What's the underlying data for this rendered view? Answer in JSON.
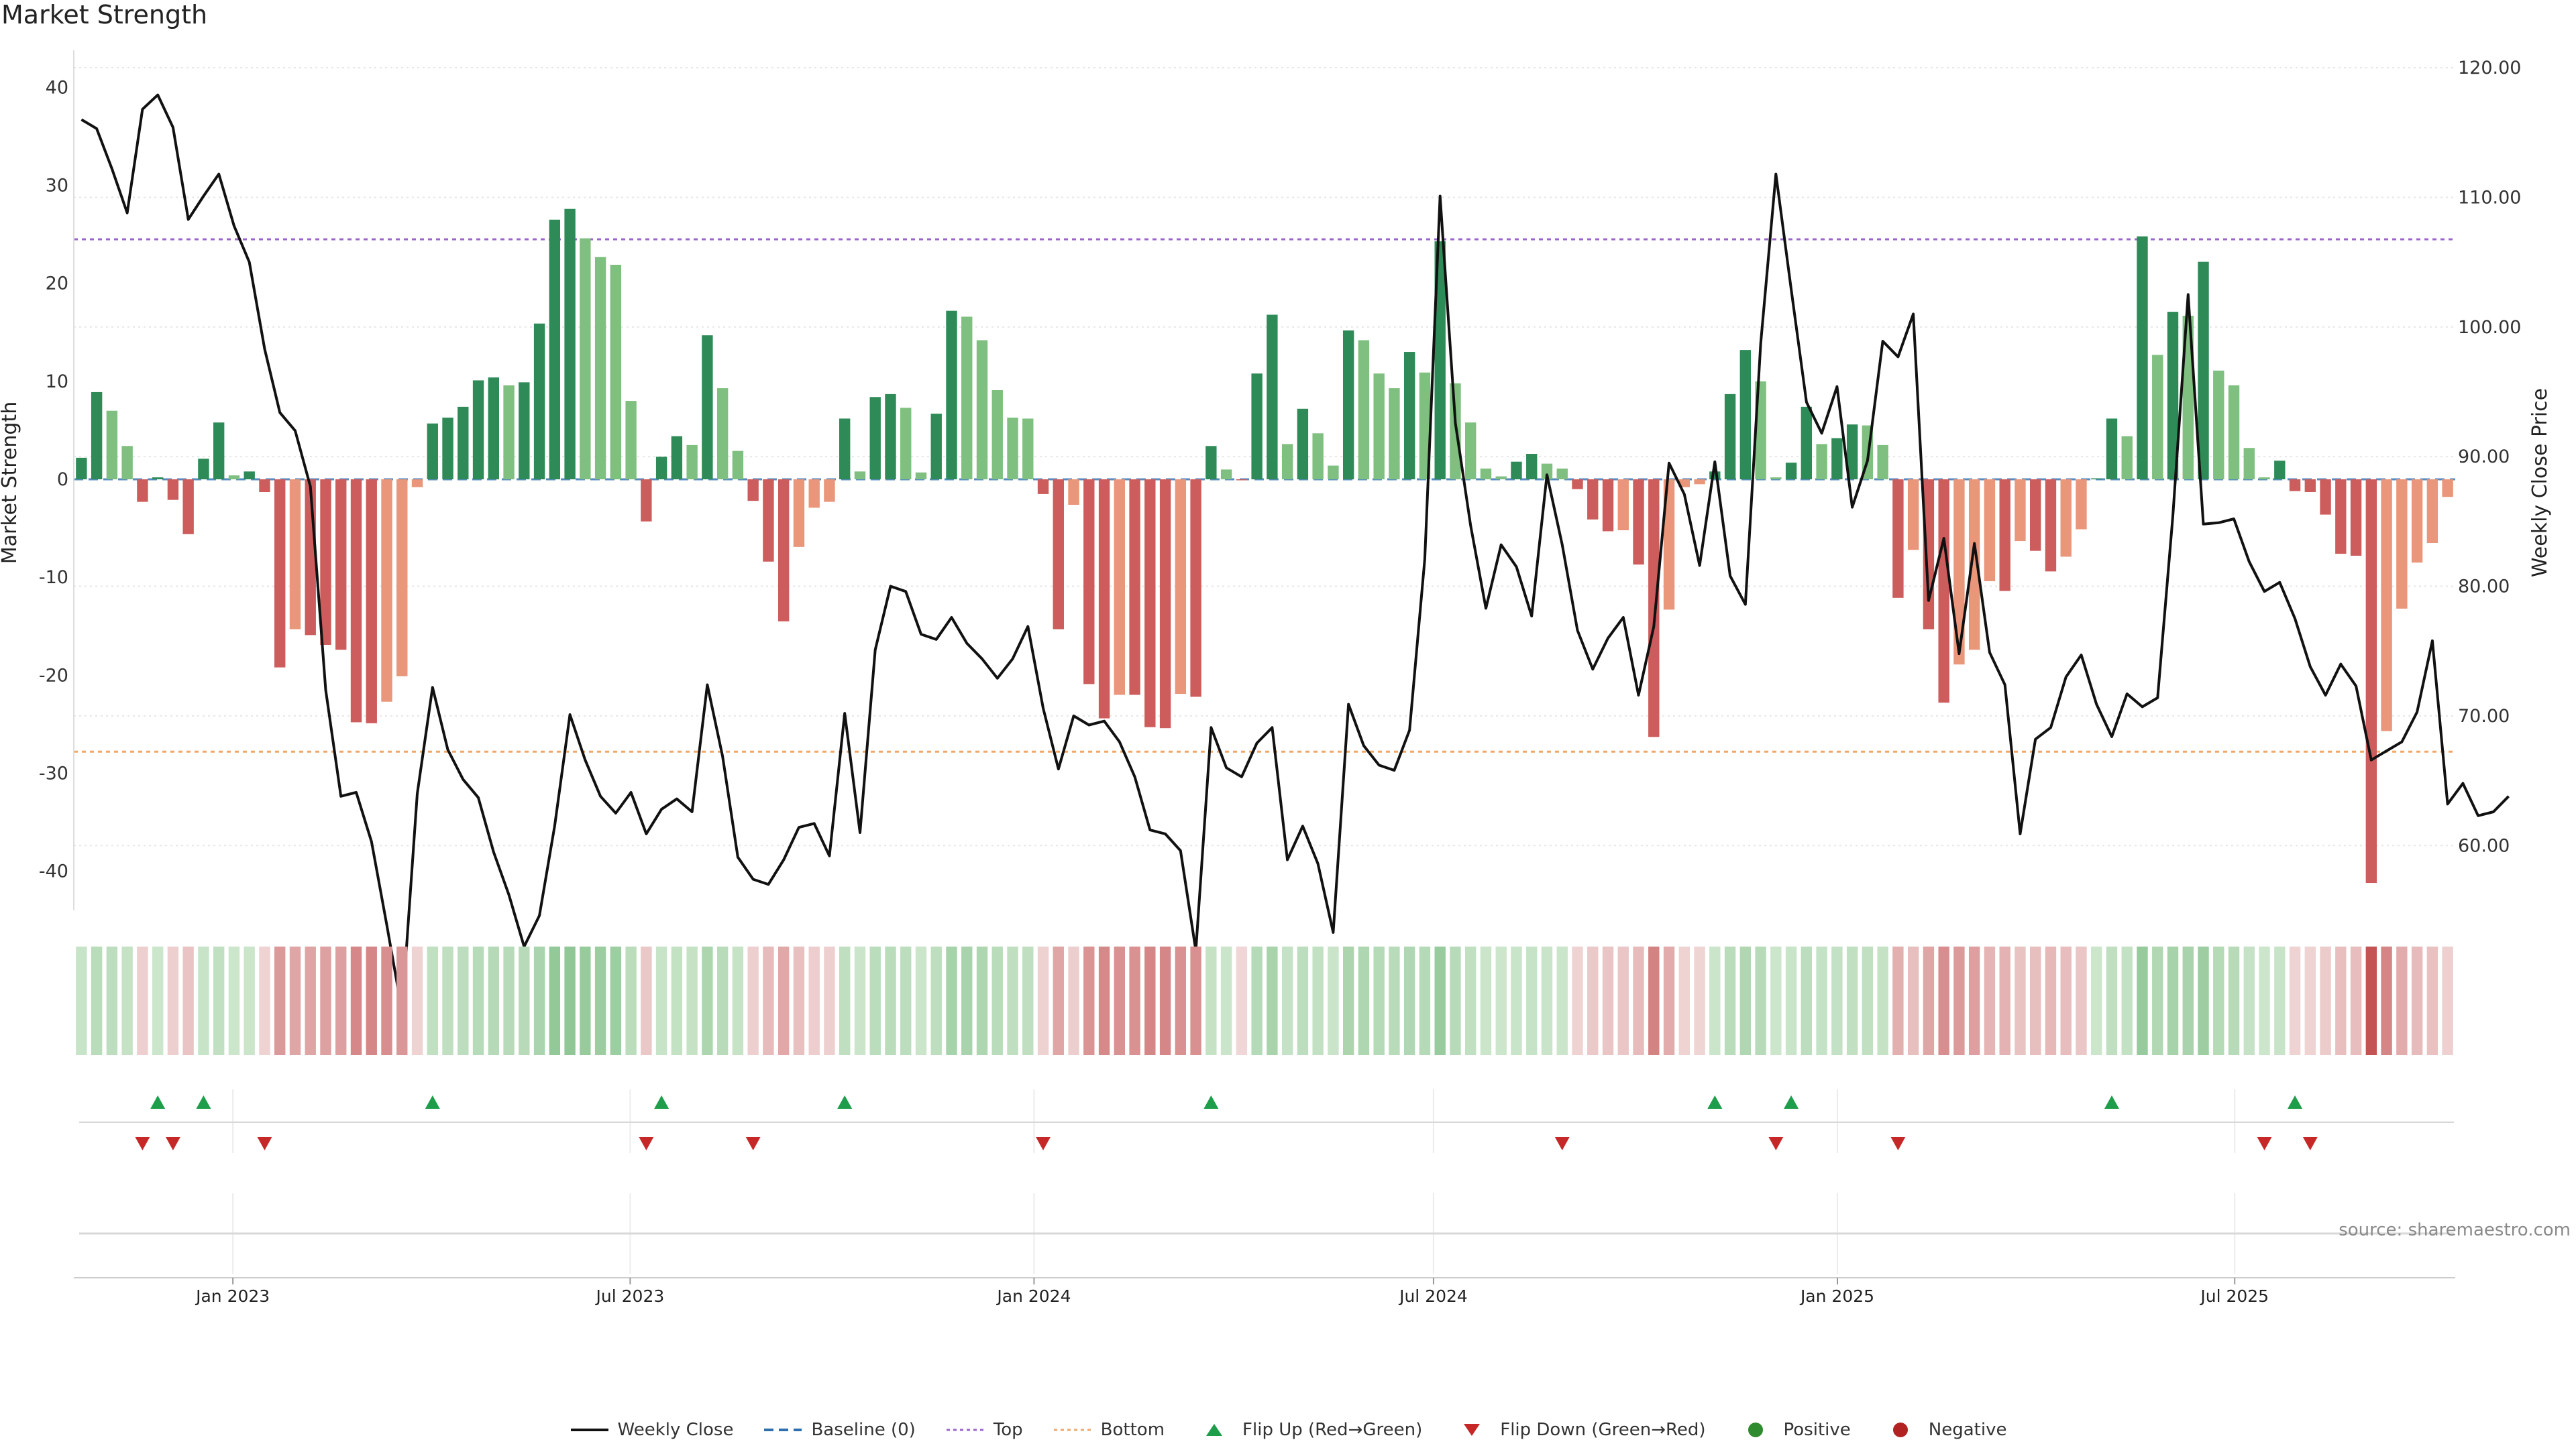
{
  "title": "Market Strength",
  "source_note": "source: sharemaestro.com",
  "colors": {
    "green_dark": "#2e8b57",
    "green_light": "#7fbf7f",
    "red_dark": "#cd5c5c",
    "red_light": "#e9967a",
    "line": "#111111",
    "top": "#9966cc",
    "bottom": "#f0a868",
    "baseline": "#2e6fb0",
    "flip_up": "#1e9e4a",
    "flip_down": "#c62828"
  },
  "legend": [
    {
      "label": "Weekly Close",
      "icon": "line-solid",
      "color": "#111111"
    },
    {
      "label": "Baseline (0)",
      "icon": "line-dashed",
      "color": "#2e6fb0"
    },
    {
      "label": "Top",
      "icon": "line-dotted",
      "color": "#9966cc"
    },
    {
      "label": "Bottom",
      "icon": "line-dotted",
      "color": "#f0a868"
    },
    {
      "label": "Flip Up (Red→Green)",
      "icon": "triangle-up",
      "color": "#1e9e4a"
    },
    {
      "label": "Flip Down (Green→Red)",
      "icon": "triangle-down",
      "color": "#c62828"
    },
    {
      "label": "Positive",
      "icon": "circle",
      "color": "#2e8b2e"
    },
    {
      "label": "Negative",
      "icon": "circle",
      "color": "#b22222"
    }
  ],
  "chart_data": {
    "type": "bar",
    "x_axis": {
      "start": "2022-10-24",
      "end": "2025-10-06",
      "tick_labels": [
        "Jan 2023",
        "Jul 2023",
        "Jan 2024",
        "Jul 2024",
        "Jan 2025",
        "Jul 2025"
      ]
    },
    "left_axis": {
      "label": "Market Strength",
      "range": [
        -44,
        44
      ],
      "ticks": [
        -40,
        -30,
        -20,
        -10,
        0,
        10,
        20,
        30,
        40
      ]
    },
    "right_axis": {
      "label": "Weekly Close Price",
      "range": [
        55,
        121.5
      ],
      "ticks": [
        "60.00",
        "70.00",
        "80.00",
        "90.00",
        "100.00",
        "110.00",
        "120.00"
      ]
    },
    "reference_lines": {
      "top": 24.5,
      "bottom": -27.8,
      "baseline": 0
    },
    "strength": [
      2.2,
      8.9,
      7.0,
      3.4,
      -2.3,
      0.2,
      -2.1,
      -5.6,
      2.1,
      5.8,
      0.4,
      0.8,
      -1.3,
      -19.2,
      -15.3,
      -15.9,
      -16.9,
      -17.4,
      -24.8,
      -24.9,
      -22.7,
      -20.1,
      -0.8,
      5.7,
      6.3,
      7.4,
      10.1,
      10.4,
      9.6,
      9.9,
      15.9,
      26.5,
      27.6,
      24.6,
      22.7,
      21.9,
      8.0,
      -4.3,
      2.3,
      4.4,
      3.5,
      14.7,
      9.3,
      2.9,
      -2.2,
      -8.4,
      -14.5,
      -6.9,
      -2.9,
      -2.3,
      6.2,
      0.8,
      8.4,
      8.7,
      7.3,
      0.7,
      6.7,
      17.2,
      16.6,
      14.2,
      9.1,
      6.3,
      6.2,
      -1.5,
      -15.3,
      -2.6,
      -20.9,
      -24.4,
      -22.0,
      -22.0,
      -25.3,
      -25.4,
      -21.9,
      -22.2,
      3.4,
      1.0,
      -0.1,
      10.8,
      16.8,
      3.6,
      7.2,
      4.7,
      1.4,
      15.2,
      14.2,
      10.8,
      9.3,
      13.0,
      10.9,
      24.3,
      9.8,
      5.8,
      1.1,
      0.3,
      1.8,
      2.6,
      1.6,
      1.1,
      -1.0,
      -4.1,
      -5.3,
      -5.2,
      -8.7,
      -26.3,
      -13.3,
      -0.8,
      -0.5,
      0.8,
      8.7,
      13.2,
      10.0,
      0.2,
      1.7,
      7.4,
      3.6,
      4.2,
      5.6,
      5.5,
      3.5,
      -12.1,
      -7.2,
      -15.3,
      -22.8,
      -18.9,
      -17.4,
      -10.4,
      -11.4,
      -6.3,
      -7.3,
      -9.4,
      -7.9,
      -5.1,
      0.1,
      6.2,
      4.4,
      24.8,
      12.7,
      17.1,
      16.7,
      22.2,
      11.1,
      9.6,
      3.2,
      0.2,
      1.9,
      -1.2,
      -1.3,
      -3.6,
      -7.6,
      -7.8,
      -41.2,
      -25.7,
      -13.2,
      -8.5,
      -6.5,
      -1.8
    ],
    "weekly_close": [
      116.0,
      115.3,
      112.2,
      108.8,
      116.8,
      117.9,
      115.4,
      108.3,
      110.1,
      111.8,
      107.8,
      105.0,
      98.3,
      93.4,
      92.0,
      87.7,
      72.0,
      63.8,
      64.1,
      60.3,
      53.9,
      47.2,
      64.0,
      72.2,
      67.4,
      65.1,
      63.7,
      59.5,
      56.2,
      52.2,
      54.6,
      61.5,
      70.1,
      66.6,
      63.8,
      62.5,
      64.1,
      60.9,
      62.8,
      63.6,
      62.6,
      72.4,
      66.9,
      59.1,
      57.4,
      57.0,
      58.9,
      61.4,
      61.7,
      59.2,
      70.2,
      61.0,
      75.1,
      80.0,
      79.6,
      76.3,
      75.9,
      77.6,
      75.6,
      74.4,
      72.9,
      74.4,
      76.9,
      70.6,
      65.9,
      70.0,
      69.3,
      69.6,
      68.0,
      65.3,
      61.2,
      60.9,
      59.6,
      51.9,
      69.1,
      66.0,
      65.3,
      67.9,
      69.1,
      58.9,
      61.5,
      58.6,
      53.3,
      70.9,
      67.7,
      66.2,
      65.8,
      68.9,
      82.1,
      110.1,
      92.6,
      84.7,
      78.3,
      83.2,
      81.5,
      77.7,
      88.6,
      83.2,
      76.6,
      73.6,
      76.0,
      77.6,
      71.6,
      76.9,
      89.5,
      87.1,
      81.6,
      89.6,
      80.8,
      78.6,
      98.7,
      111.8,
      102.9,
      94.2,
      91.8,
      95.4,
      86.1,
      89.7,
      98.9,
      97.7,
      101.0,
      78.9,
      83.7,
      74.8,
      83.3,
      74.9,
      72.4,
      60.9,
      68.2,
      69.1,
      73.0,
      74.7,
      70.9,
      68.4,
      71.7,
      70.7,
      71.4,
      85.4,
      102.5,
      84.8,
      84.9,
      85.2,
      81.9,
      79.6,
      80.3,
      77.5,
      73.8,
      71.6,
      74.0,
      72.3,
      66.6,
      67.3,
      68.0,
      70.3,
      75.8,
      63.2,
      64.8,
      62.3,
      62.6,
      63.8
    ]
  },
  "flips": {
    "up": [
      5,
      8,
      23,
      38,
      50,
      74,
      107,
      112,
      133,
      145
    ],
    "down": [
      4,
      6,
      12,
      37,
      44,
      63,
      97,
      111,
      119,
      143,
      146
    ]
  },
  "strip_rows": [
    {
      "label": "",
      "values": []
    },
    {
      "label": "",
      "values": []
    }
  ]
}
